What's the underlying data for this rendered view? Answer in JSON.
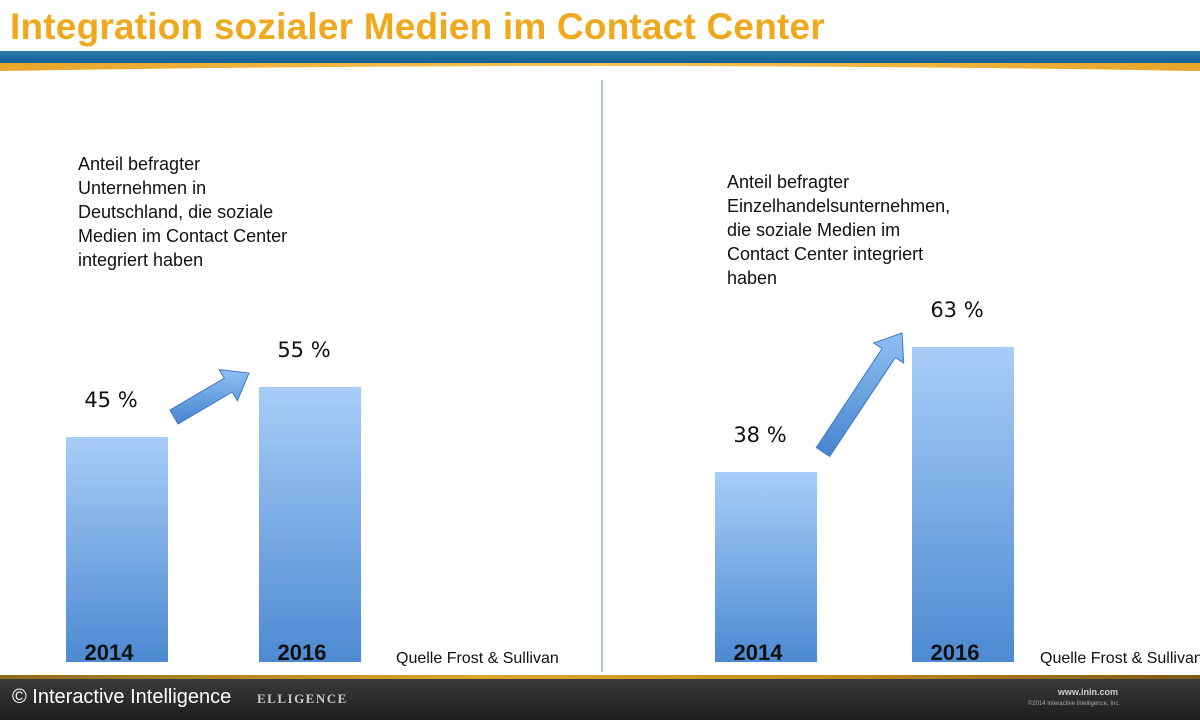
{
  "slide": {
    "title": "Integration sozialer Medien im Contact Center",
    "source": "Quelle Frost & Sullivan",
    "colors": {
      "title": "#f0a81c",
      "band_blue": "#1a6aa3",
      "bar_top": "#a8cdf7",
      "bar_bottom": "#4d8ad2"
    }
  },
  "footer": {
    "copyright": "© Interactive Intelligence",
    "logo_word": "ELLIGENCE",
    "url": "www.inin.com",
    "legal": "©2014 Interactive Intelligence, Inc."
  },
  "chart_data": [
    {
      "type": "bar",
      "title": "Anteil befragter Unternehmen in Deutschland, die soziale Medien im Contact Center integriert haben",
      "title_lines": [
        "Anteil befragter",
        "Unternehmen in",
        "Deutschland, die soziale",
        "Medien im Contact Center",
        "integriert haben"
      ],
      "categories": [
        "2014",
        "2016"
      ],
      "values": [
        45,
        55
      ],
      "value_labels": [
        "45 %",
        "55 %"
      ],
      "unit": "%",
      "ylim": [
        0,
        100
      ],
      "grid": false,
      "trend_arrow": true
    },
    {
      "type": "bar",
      "title": "Anteil befragter Einzelhandelsunternehmen, die soziale Medien im Contact Center integriert haben",
      "title_lines": [
        "Anteil befragter",
        "Einzelhandelsunternehmen,",
        "die soziale Medien im",
        "Contact Center integriert",
        "haben"
      ],
      "categories": [
        "2014",
        "2016"
      ],
      "values": [
        38,
        63
      ],
      "value_labels": [
        "38 %",
        "63 %"
      ],
      "unit": "%",
      "ylim": [
        0,
        100
      ],
      "grid": false,
      "trend_arrow": true
    }
  ]
}
